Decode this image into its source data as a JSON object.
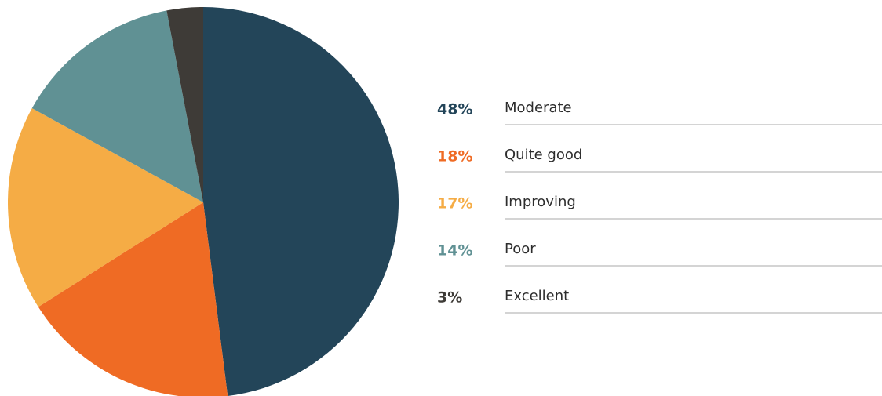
{
  "chart_data": {
    "type": "pie",
    "categories": [
      "Moderate",
      "Quite good",
      "Improving",
      "Poor",
      "Excellent"
    ],
    "values": [
      48,
      18,
      17,
      14,
      3
    ],
    "value_labels": [
      "48%",
      "18%",
      "17%",
      "14%",
      "3%"
    ],
    "colors": [
      "#234559",
      "#ef6b24",
      "#f5ac45",
      "#609194",
      "#3e3b37"
    ],
    "legend": "right"
  }
}
